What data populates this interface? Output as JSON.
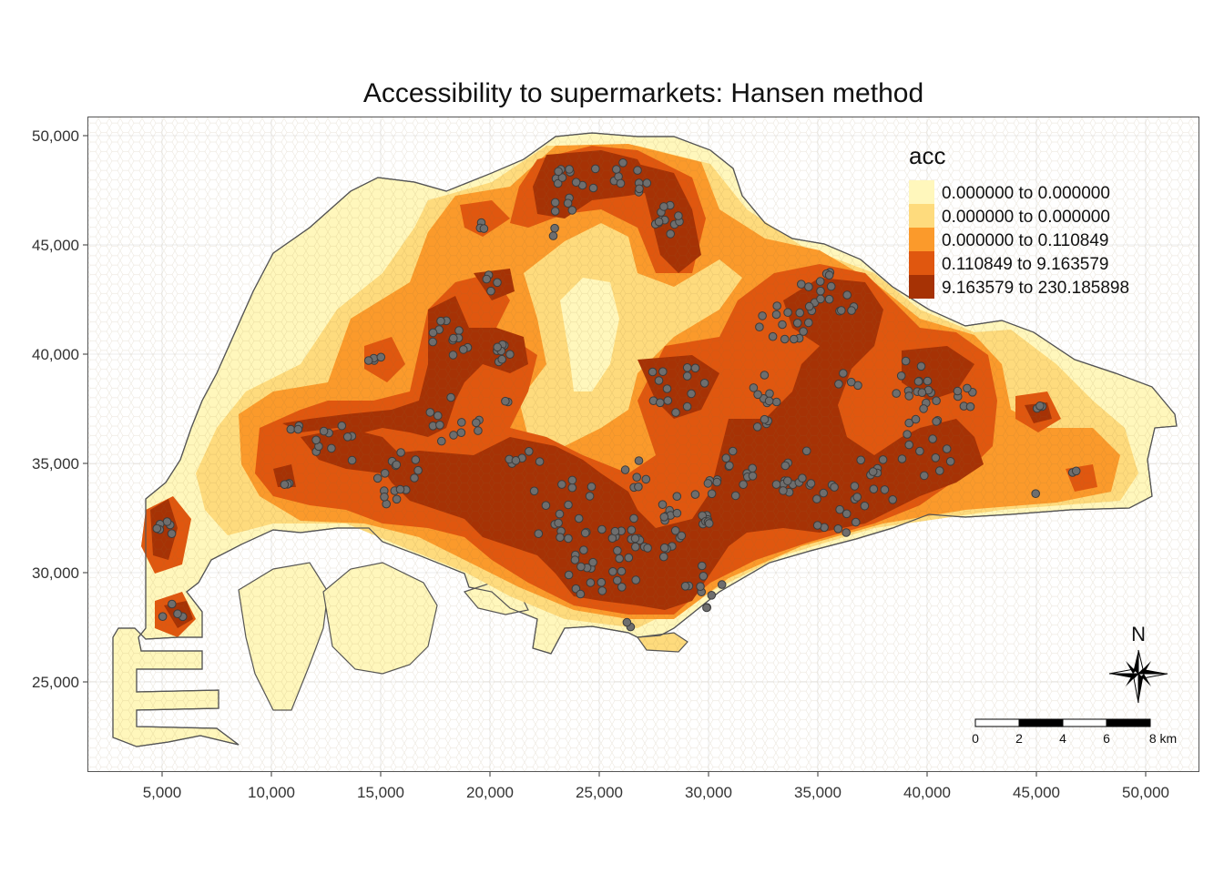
{
  "title": "Accessibility to supermarkets: Hansen method",
  "legend": {
    "title": "acc",
    "entries": [
      {
        "label": "0.000000 to 0.000000",
        "color": "#FFF7BC"
      },
      {
        "label": "0.000000 to 0.000000",
        "color": "#FEDB7D"
      },
      {
        "label": "0.000000 to 0.110849",
        "color": "#FB9A2B"
      },
      {
        "label": "0.110849 to 9.163579",
        "color": "#E0570F"
      },
      {
        "label": "9.163579 to 230.185898",
        "color": "#A63205"
      }
    ]
  },
  "axes": {
    "x_ticks": [
      "5,000",
      "10,000",
      "15,000",
      "20,000",
      "25,000",
      "30,000",
      "35,000",
      "40,000",
      "45,000",
      "50,000"
    ],
    "y_ticks": [
      "50,000",
      "45,000",
      "40,000",
      "35,000",
      "30,000",
      "25,000"
    ]
  },
  "north_arrow": {
    "label": "N"
  },
  "scale_bar": {
    "labels": [
      "0",
      "2",
      "4",
      "6",
      "8 km"
    ]
  },
  "colors": {
    "outline": "#555555",
    "point": "#6E6E6E",
    "point_stroke": "#3c3c3c"
  }
}
